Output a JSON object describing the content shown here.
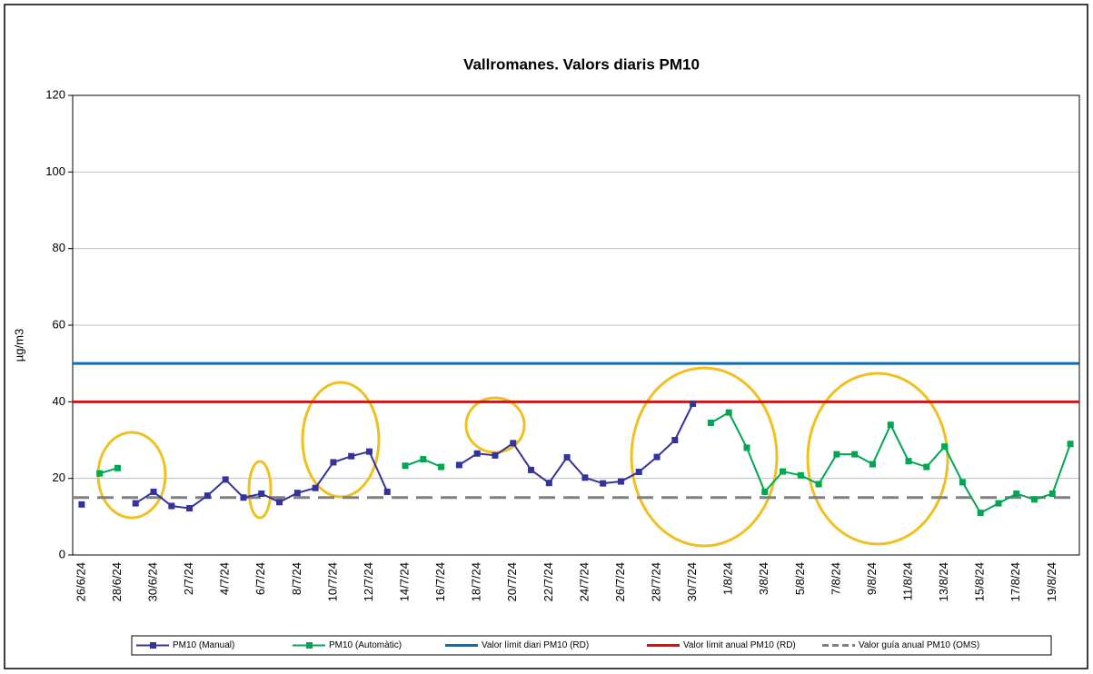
{
  "chart_data": {
    "type": "line",
    "title": "Vallromanes. Valors diaris PM10",
    "y_label": "µg/m3",
    "categories": [
      "26/6/24",
      null,
      "28/6/24",
      null,
      "30/6/24",
      null,
      "2/7/24",
      null,
      "4/7/24",
      null,
      "6/7/24",
      null,
      "8/7/24",
      null,
      "10/7/24",
      null,
      "12/7/24",
      null,
      "14/7/24",
      null,
      "16/7/24",
      null,
      "18/7/24",
      null,
      "20/7/24",
      null,
      "22/7/24",
      null,
      "24/7/24",
      null,
      "26/7/24",
      null,
      "28/7/24",
      null,
      "30/7/24",
      null,
      "1/8/24",
      null,
      "3/8/24",
      null,
      "5/8/24",
      null,
      "7/8/24",
      null,
      "9/8/24",
      null,
      "11/8/24",
      null,
      "13/8/24",
      null,
      "15/8/24",
      null,
      "17/8/24",
      null,
      "19/8/24",
      null
    ],
    "series": [
      {
        "name": "PM10 (Manual)",
        "color": "#333399",
        "values": [
          13.2,
          null,
          null,
          13.5,
          16.5,
          12.8,
          12.2,
          15.5,
          19.7,
          15,
          16,
          13.8,
          16.2,
          17.5,
          24.2,
          25.8,
          27,
          16.5,
          null,
          null,
          null,
          23.5,
          26.5,
          26,
          29.2,
          22.2,
          18.8,
          25.5,
          20.2,
          18.7,
          19.2,
          21.7,
          25.6,
          30,
          39.5,
          null,
          null,
          null,
          null,
          null,
          null,
          null,
          null,
          null,
          null,
          null,
          null,
          null,
          null,
          null,
          null,
          null,
          null,
          null,
          null,
          null
        ]
      },
      {
        "name": "PM10 (Automàtic)",
        "color": "#00a651",
        "values": [
          null,
          21.3,
          22.7,
          null,
          null,
          null,
          null,
          null,
          null,
          null,
          null,
          null,
          null,
          null,
          null,
          null,
          null,
          null,
          23.3,
          25,
          23,
          null,
          null,
          null,
          null,
          null,
          null,
          null,
          null,
          null,
          null,
          null,
          null,
          null,
          null,
          34.5,
          37.2,
          28,
          16.5,
          21.8,
          20.8,
          18.5,
          26.3,
          26.3,
          23.7,
          34,
          24.5,
          23,
          28.3,
          19,
          11,
          13.5,
          16,
          14.5,
          16,
          29
        ]
      }
    ],
    "reference_lines": [
      {
        "name": "Valor límit diari PM10 (RD)",
        "color": "#0070c0",
        "value": 50,
        "dashed": false
      },
      {
        "name": "Valor límit anual PM10 (RD)",
        "color": "#ff0000",
        "value": 40,
        "dashed": false
      },
      {
        "name": "Valor guía anual PM10 (OMS)",
        "color": "#808080",
        "value": 15,
        "dashed": true
      }
    ],
    "ylim": [
      0,
      120
    ],
    "yticks": [
      0,
      20,
      40,
      60,
      80,
      100,
      120
    ],
    "grid": true
  }
}
